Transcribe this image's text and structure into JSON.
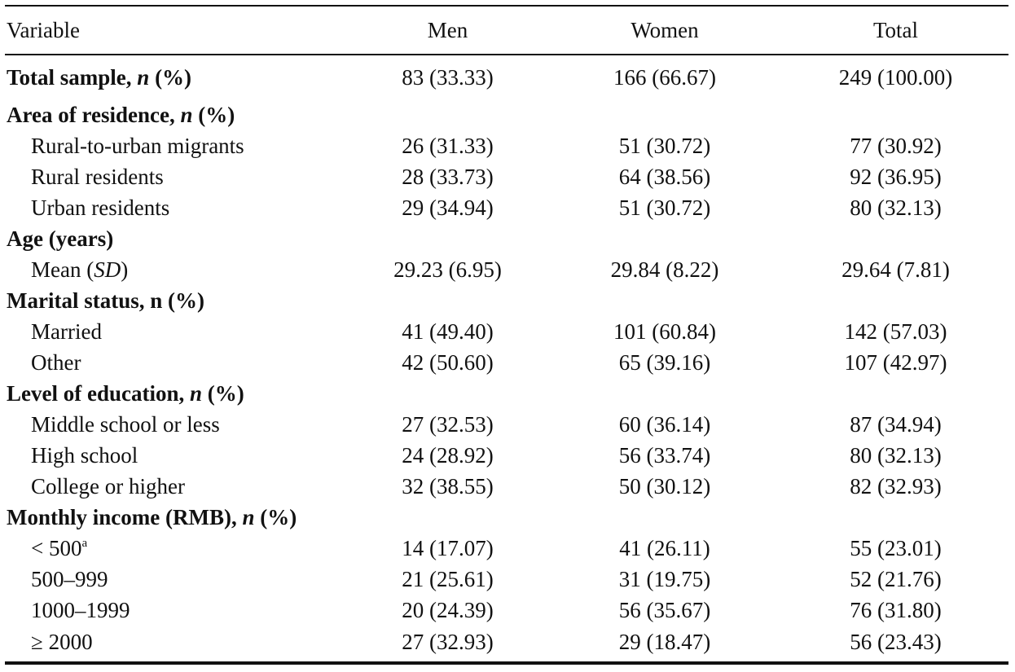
{
  "table": {
    "columns": [
      "Variable",
      "Men",
      "Women",
      "Total"
    ],
    "rows": [
      {
        "label": "Total sample, ",
        "label_em": "n",
        "label_tail": " (%)",
        "men": "83 (33.33)",
        "women": "166 (66.67)",
        "total": "249 (100.00)"
      },
      {
        "label": "Area of residence, ",
        "label_em": "n",
        "label_tail": " (%)",
        "men": "",
        "women": "",
        "total": ""
      },
      {
        "label": "Rural-to-urban migrants",
        "men": "26 (31.33)",
        "women": "51 (30.72)",
        "total": "77 (30.92)"
      },
      {
        "label": "Rural residents",
        "men": "28 (33.73)",
        "women": "64 (38.56)",
        "total": "92 (36.95)"
      },
      {
        "label": "Urban residents",
        "men": "29 (34.94)",
        "women": "51 (30.72)",
        "total": "80 (32.13)"
      },
      {
        "label": "Age (years)",
        "men": "",
        "women": "",
        "total": ""
      },
      {
        "label": "Mean (",
        "label_em": "SD",
        "label_tail": ")",
        "men": "29.23 (6.95)",
        "women": "29.84 (8.22)",
        "total": "29.64 (7.81)"
      },
      {
        "label": "Marital status, n (%)",
        "men": "",
        "women": "",
        "total": ""
      },
      {
        "label": "Married",
        "men": "41 (49.40)",
        "women": "101 (60.84)",
        "total": "142 (57.03)"
      },
      {
        "label": "Other",
        "men": "42 (50.60)",
        "women": "65 (39.16)",
        "total": "107 (42.97)"
      },
      {
        "label": "Level of education, ",
        "label_em": "n",
        "label_tail": " (%)",
        "men": "",
        "women": "",
        "total": ""
      },
      {
        "label": "Middle school or less",
        "men": "27 (32.53)",
        "women": "60 (36.14)",
        "total": "87 (34.94)"
      },
      {
        "label": "High school",
        "men": "24 (28.92)",
        "women": "56 (33.74)",
        "total": "80 (32.13)"
      },
      {
        "label": "College or higher",
        "men": "32 (38.55)",
        "women": "50 (30.12)",
        "total": "82 (32.93)"
      },
      {
        "label": "Monthly income (RMB), ",
        "label_em": "n",
        "label_tail": " (%)",
        "men": "",
        "women": "",
        "total": ""
      },
      {
        "label": "< 500",
        "label_sup": "a",
        "men": "14 (17.07)",
        "women": "41 (26.11)",
        "total": "55 (23.01)"
      },
      {
        "label": "500–999",
        "men": "21 (25.61)",
        "women": "31 (19.75)",
        "total": "52 (21.76)"
      },
      {
        "label": "1000–1999",
        "men": "20 (24.39)",
        "women": "56 (35.67)",
        "total": "76 (31.80)"
      },
      {
        "label": "≥ 2000",
        "men": "27 (32.93)",
        "women": "29 (18.47)",
        "total": "56 (23.43)"
      }
    ]
  }
}
